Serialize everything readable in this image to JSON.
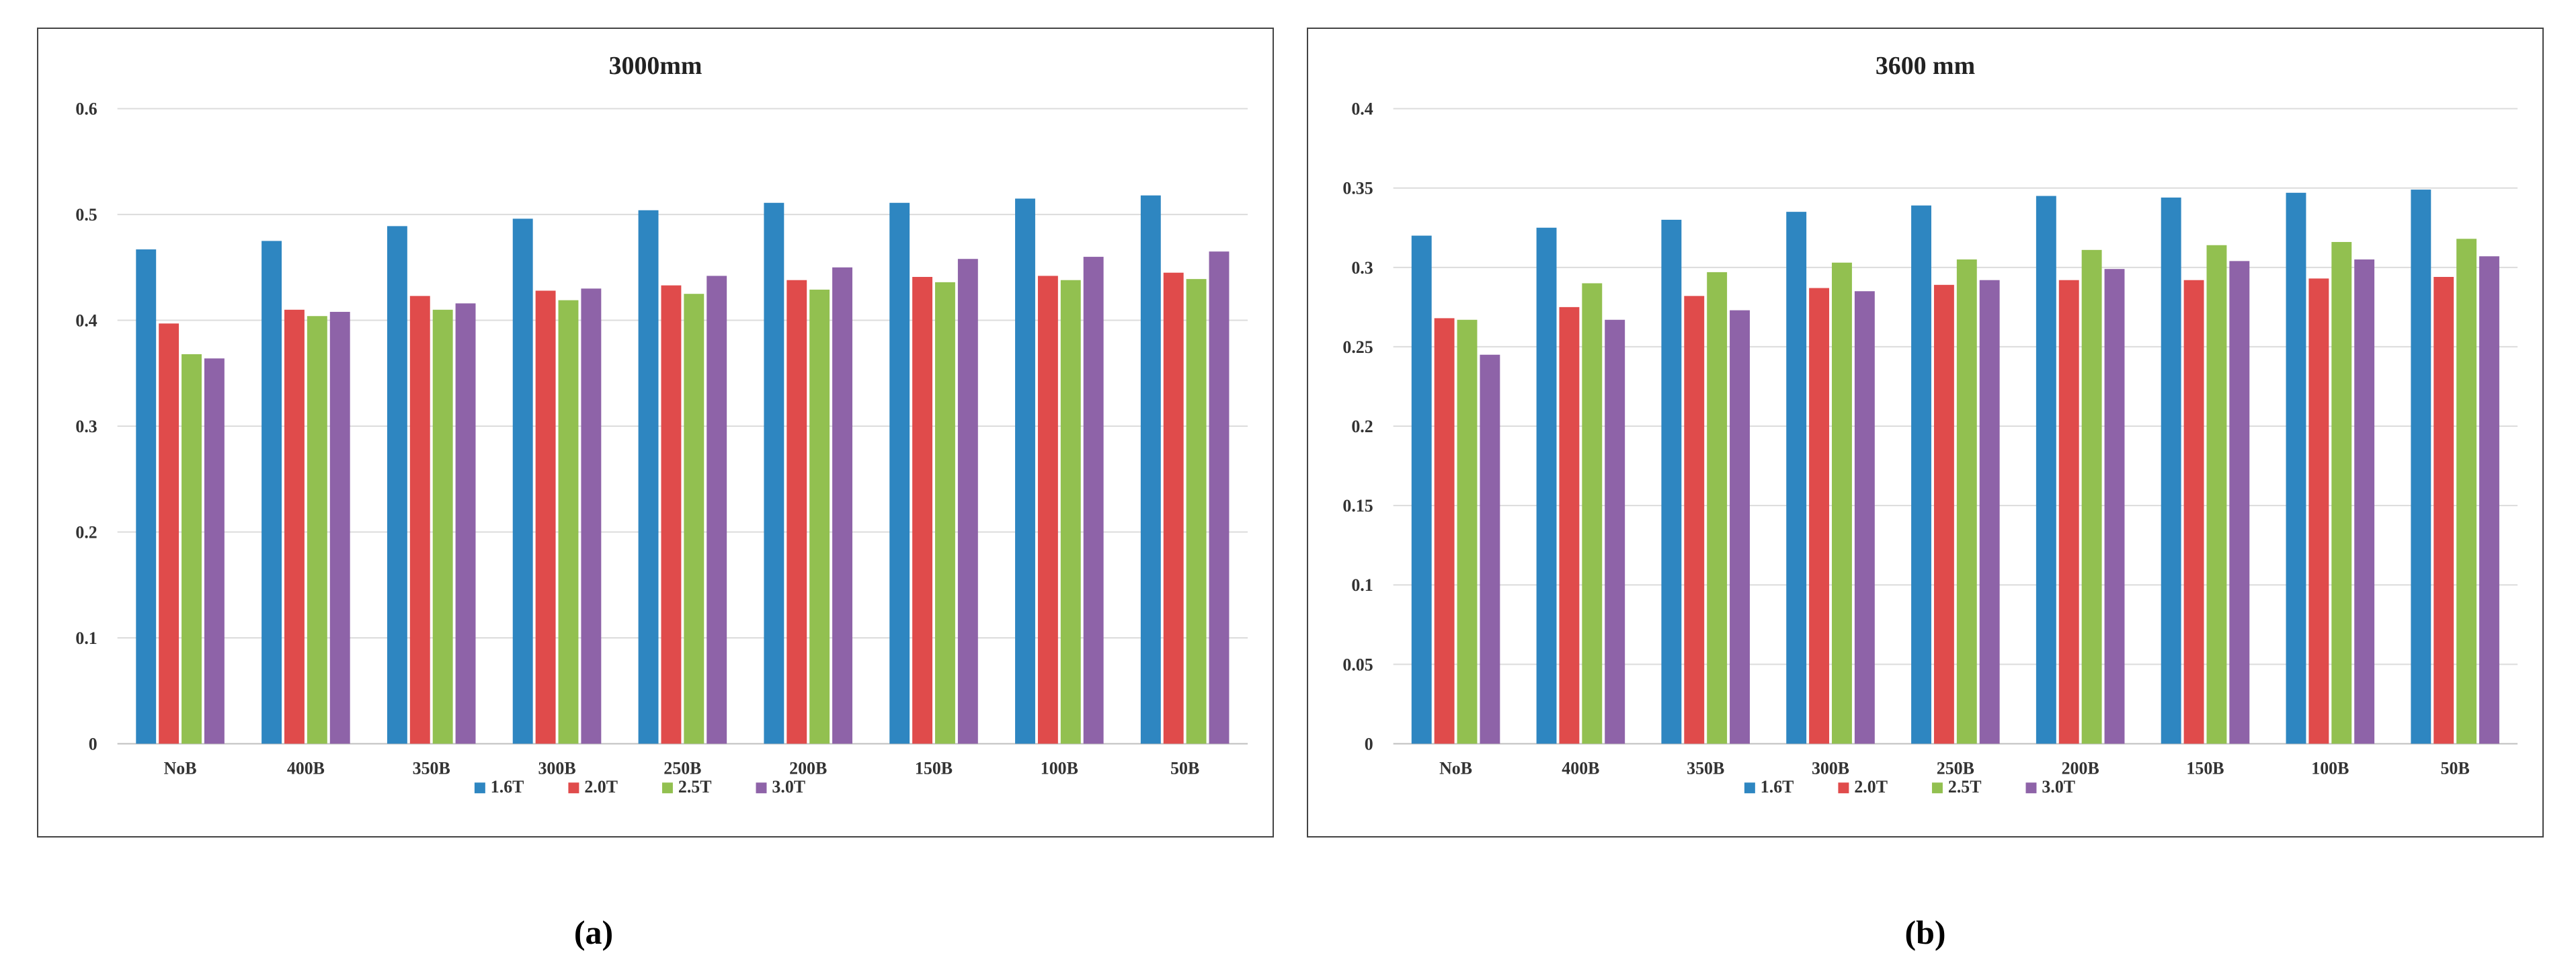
{
  "chart_data": [
    {
      "type": "bar",
      "title": "3000mm",
      "xlabel": "",
      "ylabel": "",
      "categories": [
        "NoB",
        "400B",
        "350B",
        "300B",
        "250B",
        "200B",
        "150B",
        "100B",
        "50B"
      ],
      "ylim": [
        0,
        0.6
      ],
      "yticks": [
        0,
        0.1,
        0.2,
        0.3,
        0.4,
        0.5,
        0.6
      ],
      "ytick_labels": [
        "0",
        "0.1",
        "0.2",
        "0.3",
        "0.4",
        "0.5",
        "0.6"
      ],
      "grid": true,
      "legend_position": "bottom",
      "series": [
        {
          "name": "1.6T",
          "color": "#2E86C1",
          "values": [
            0.467,
            0.475,
            0.489,
            0.496,
            0.504,
            0.511,
            0.511,
            0.515,
            0.518
          ]
        },
        {
          "name": "2.0T",
          "color": "#E04B4B",
          "values": [
            0.397,
            0.41,
            0.423,
            0.428,
            0.433,
            0.438,
            0.441,
            0.442,
            0.445
          ]
        },
        {
          "name": "2.5T",
          "color": "#92C050",
          "values": [
            0.368,
            0.404,
            0.41,
            0.419,
            0.425,
            0.429,
            0.436,
            0.438,
            0.439
          ]
        },
        {
          "name": "3.0T",
          "color": "#8E63A8",
          "values": [
            0.364,
            0.408,
            0.416,
            0.43,
            0.442,
            0.45,
            0.458,
            0.46,
            0.465
          ]
        }
      ]
    },
    {
      "type": "bar",
      "title": "3600 mm",
      "xlabel": "",
      "ylabel": "",
      "categories": [
        "NoB",
        "400B",
        "350B",
        "300B",
        "250B",
        "200B",
        "150B",
        "100B",
        "50B"
      ],
      "ylim": [
        0,
        0.4
      ],
      "yticks": [
        0,
        0.05,
        0.1,
        0.15,
        0.2,
        0.25,
        0.3,
        0.35,
        0.4
      ],
      "ytick_labels": [
        "0",
        "0.05",
        "0.1",
        "0.15",
        "0.2",
        "0.25",
        "0.3",
        "0.35",
        "0.4"
      ],
      "grid": true,
      "legend_position": "bottom",
      "series": [
        {
          "name": "1.6T",
          "color": "#2E86C1",
          "values": [
            0.32,
            0.325,
            0.33,
            0.335,
            0.339,
            0.345,
            0.344,
            0.347,
            0.349
          ]
        },
        {
          "name": "2.0T",
          "color": "#E04B4B",
          "values": [
            0.268,
            0.275,
            0.282,
            0.287,
            0.289,
            0.292,
            0.292,
            0.293,
            0.294
          ]
        },
        {
          "name": "2.5T",
          "color": "#92C050",
          "values": [
            0.267,
            0.29,
            0.297,
            0.303,
            0.305,
            0.311,
            0.314,
            0.316,
            0.318
          ]
        },
        {
          "name": "3.0T",
          "color": "#8E63A8",
          "values": [
            0.245,
            0.267,
            0.273,
            0.285,
            0.292,
            0.299,
            0.304,
            0.305,
            0.307
          ]
        }
      ]
    }
  ],
  "captions": [
    "(a)",
    "(b)"
  ]
}
